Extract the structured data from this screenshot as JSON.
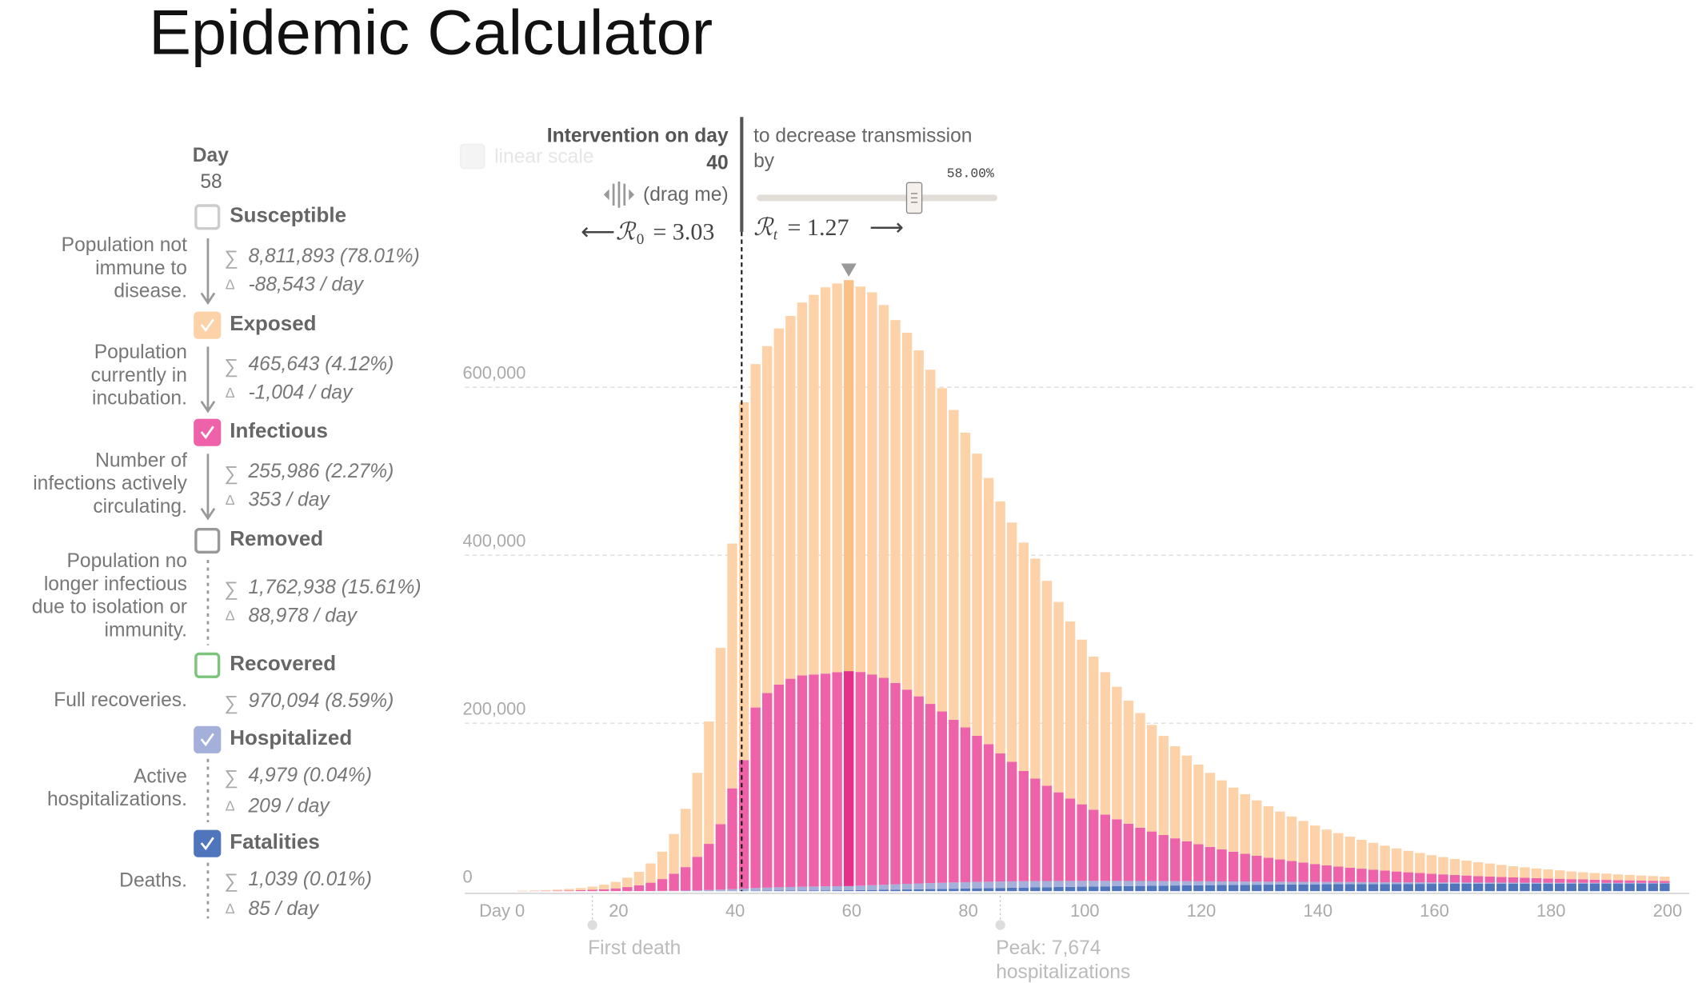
{
  "header": {
    "title": "Epidemic Calculator"
  },
  "controls": {
    "linear_scale": "linear scale",
    "intervention_label": "Intervention on day",
    "drag_hint": "(drag me)",
    "decrease_label_lines": [
      "to decrease transmission",
      "by"
    ],
    "slider_label": "58.00%",
    "r0": {
      "arrow": "⟵",
      "symbol": "ℛ",
      "sub": "0",
      "rest": "= 3.03"
    },
    "rt": {
      "symbol": "ℛ",
      "sub": "t",
      "rest": "= 1.27",
      "arrow": "⟶"
    }
  },
  "sidebar": {
    "day_label": "Day",
    "sum_icon": "∑",
    "delta_icon": "Δ"
  },
  "chart_data": {
    "type": "bar",
    "stacked": true,
    "selected_day": 58,
    "intervention_day": 40,
    "xlim": [
      0,
      200
    ],
    "xticks": [
      {
        "value": 0,
        "label": "Day 0"
      },
      20,
      40,
      60,
      80,
      100,
      120,
      140,
      160,
      180,
      200
    ],
    "ylim": [
      0,
      750000
    ],
    "yticks": [
      0,
      {
        "value": 200000,
        "label": "200,000"
      },
      {
        "value": 400000,
        "label": "400,000"
      },
      {
        "value": 600000,
        "label": "600,000"
      }
    ],
    "grid": true,
    "x": [
      0,
      2,
      4,
      6,
      8,
      10,
      12,
      14,
      16,
      18,
      20,
      22,
      24,
      26,
      28,
      30,
      32,
      34,
      36,
      38,
      40,
      42,
      44,
      46,
      48,
      50,
      52,
      54,
      56,
      58,
      60,
      62,
      64,
      66,
      68,
      70,
      72,
      74,
      76,
      78,
      80,
      82,
      84,
      86,
      88,
      90,
      92,
      94,
      96,
      98,
      100,
      102,
      104,
      106,
      108,
      110,
      112,
      114,
      116,
      118,
      120,
      122,
      124,
      126,
      128,
      130,
      132,
      134,
      136,
      138,
      140,
      142,
      144,
      146,
      148,
      150,
      152,
      154,
      156,
      158,
      160,
      162,
      164,
      166,
      168,
      170,
      172,
      174,
      176,
      178,
      180,
      182,
      184,
      186,
      188,
      190,
      192,
      194,
      196,
      198
    ],
    "annotations": [
      {
        "x": 14,
        "lines": [
          "First death"
        ]
      },
      {
        "x": 84,
        "lines": [
          "Peak: 7,674",
          "hospitalizations"
        ]
      }
    ],
    "series": [
      {
        "name": "Susceptible",
        "color": "#cccccc",
        "checked": false,
        "description": [
          "Population not",
          "immune to",
          "disease."
        ],
        "total": "8,811,893 (78.01%)",
        "change": "-88,543 / day"
      },
      {
        "name": "Exposed",
        "color": "#fdd2a8",
        "highlight_color": "#fcbf86",
        "checked": true,
        "description": [
          "Population",
          "currently in",
          "incubation."
        ],
        "total": "465,643 (4.12%)",
        "change": "-1,004 / day",
        "values": [
          0,
          450,
          630,
          910,
          1260,
          1820,
          2600,
          3800,
          5400,
          7700,
          11150,
          16000,
          22900,
          32600,
          47200,
          69400,
          100000,
          145700,
          210000,
          291500,
          426000,
          409000,
          413000,
          424000,
          432000,
          444000,
          452000,
          460000,
          463000,
          465643,
          459000,
          455000,
          444000,
          432000,
          425000,
          412000,
          398000,
          385000,
          369000,
          351000,
          336000,
          317000,
          300000,
          285000,
          272000,
          262000,
          244000,
          226800,
          210900,
          196100,
          182300,
          169600,
          157800,
          146600,
          136500,
          126900,
          118000,
          109700,
          102100,
          94800,
          88200,
          82100,
          76300,
          71000,
          66000,
          61300,
          57000,
          53100,
          49500,
          45800,
          42600,
          39800,
          37000,
          34400,
          32000,
          29700,
          27500,
          25600,
          23900,
          22100,
          20600,
          19100,
          17800,
          16600,
          15500,
          14400,
          13300,
          12500,
          11600,
          10800,
          10100,
          9200,
          8600,
          8000,
          7500,
          6900,
          6500,
          6000,
          5600,
          5200
        ]
      },
      {
        "name": "Infectious",
        "color": "#ee62a9",
        "highlight_color": "#e52f89",
        "checked": true,
        "description": [
          "Number of",
          "infections actively",
          "circulating."
        ],
        "total": "255,986 (2.27%)",
        "change": "353 / day",
        "values": [
          1,
          150,
          270,
          390,
          540,
          780,
          1100,
          1600,
          2300,
          3300,
          4800,
          6900,
          9900,
          14100,
          20400,
          28000,
          40000,
          55000,
          78000,
          120000,
          153000,
          215000,
          231800,
          241400,
          248000,
          251700,
          252500,
          253300,
          254800,
          255986,
          254500,
          251000,
          246400,
          239800,
          231300,
          222800,
          213400,
          204000,
          193700,
          184300,
          174000,
          163800,
          152500,
          142300,
          131200,
          122000,
          113500,
          105500,
          98100,
          91200,
          84800,
          78900,
          73400,
          68200,
          63500,
          59000,
          54900,
          51000,
          47500,
          44100,
          41000,
          38200,
          35500,
          33000,
          30700,
          28500,
          26500,
          24700,
          23000,
          21300,
          19800,
          18500,
          17200,
          16000,
          14900,
          13800,
          12800,
          11900,
          11100,
          10300,
          9600,
          8900,
          8300,
          7700,
          7200,
          6700,
          6200,
          5800,
          5400,
          5000,
          4700,
          4300,
          4000,
          3700,
          3500,
          3200,
          3000,
          2800,
          2600,
          2400
        ]
      },
      {
        "name": "Removed",
        "color": "#999999",
        "checked": false,
        "description": [
          "Population no",
          "longer infectious",
          "due to isolation or",
          "immunity."
        ],
        "total": "1,762,938 (15.61%)",
        "change": "88,978 / day"
      },
      {
        "name": "Recovered",
        "color": "#7cc47c",
        "checked": false,
        "description": [
          "Full recoveries."
        ],
        "total": "970,094 (8.59%)"
      },
      {
        "name": "Hospitalized",
        "color": "#a4afda",
        "checked": true,
        "description": [
          "Active",
          "hospitalizations."
        ],
        "total": "4,979 (0.04%)",
        "change": "209 / day",
        "values": [
          0,
          0,
          0,
          0,
          0,
          0,
          0,
          0,
          5,
          20,
          50,
          90,
          150,
          240,
          350,
          550,
          800,
          1150,
          1600,
          2100,
          2700,
          3200,
          3600,
          3950,
          4200,
          4450,
          4650,
          4800,
          4900,
          4979,
          5300,
          5700,
          6050,
          6400,
          6700,
          6950,
          7150,
          7320,
          7450,
          7560,
          7630,
          7665,
          7674,
          7650,
          7590,
          7500,
          7380,
          7240,
          7080,
          6900,
          6700,
          6500,
          6280,
          6060,
          5840,
          5620,
          5400,
          5180,
          4960,
          4750,
          4540,
          4340,
          4140,
          3950,
          3760,
          3580,
          3410,
          3240,
          3080,
          2930,
          2780,
          2640,
          2510,
          2380,
          2260,
          2150,
          2040,
          1940,
          1840,
          1750,
          1660,
          1580,
          1500,
          1430,
          1360,
          1290,
          1230,
          1170,
          1110,
          1060,
          1010,
          960,
          920,
          880,
          840,
          800,
          770,
          740,
          710,
          680
        ]
      },
      {
        "name": "Fatalities",
        "color": "#4f75bd",
        "checked": true,
        "description": [
          "Deaths."
        ],
        "total": "1,039 (0.01%)",
        "change": "85 / day",
        "values": [
          0,
          0,
          0,
          0,
          0,
          0,
          0,
          1,
          1,
          2,
          5,
          10,
          18,
          30,
          48,
          75,
          110,
          160,
          225,
          300,
          390,
          480,
          570,
          660,
          740,
          810,
          880,
          940,
          990,
          1039,
          1210,
          1390,
          1580,
          1780,
          1990,
          2210,
          2430,
          2650,
          2880,
          3110,
          3340,
          3570,
          3800,
          4020,
          4250,
          4470,
          4690,
          4900,
          5110,
          5310,
          5510,
          5700,
          5890,
          6070,
          6240,
          6410,
          6570,
          6720,
          6870,
          7010,
          7140,
          7270,
          7390,
          7510,
          7620,
          7720,
          7820,
          7910,
          8000,
          8080,
          8160,
          8230,
          8300,
          8370,
          8430,
          8490,
          8540,
          8590,
          8640,
          8680,
          8720,
          8760,
          8800,
          8830,
          8860,
          8890,
          8920,
          8940,
          8960,
          8980,
          9000,
          9020,
          9040,
          9050,
          9060,
          9070,
          9080,
          9090,
          9100,
          9110
        ]
      }
    ]
  }
}
